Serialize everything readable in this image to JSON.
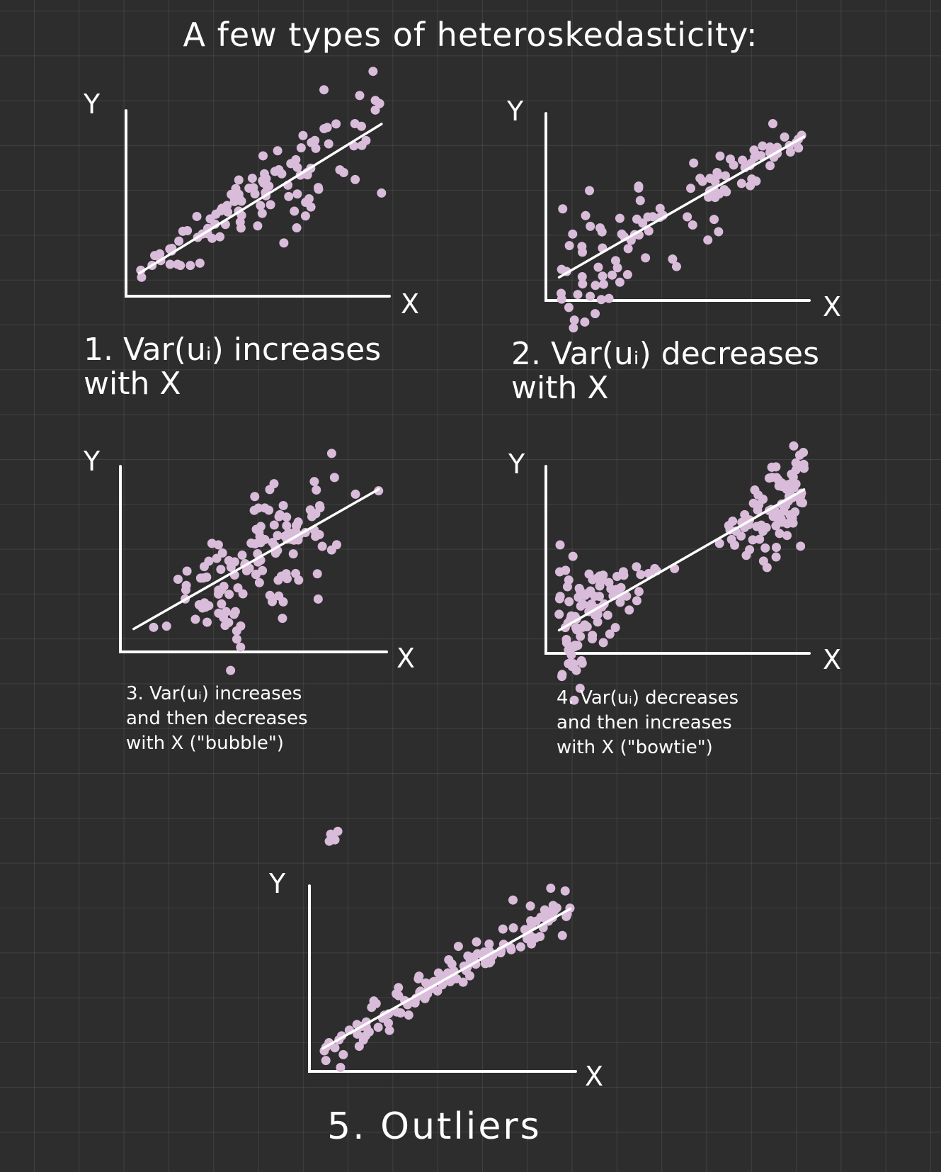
{
  "title": "A few types of heteroskedasticity:",
  "axis": {
    "x_label": "X",
    "y_label": "Y"
  },
  "colors": {
    "background": "#2d2d2d",
    "grid": "#4a4a4a",
    "ink": "#ffffff",
    "points": "#d9bcd9"
  },
  "chart_data": [
    {
      "type": "scatter",
      "pattern": "increasing-variance",
      "caption": "1. Var(uᵢ) increases\nwith X",
      "fit_line": {
        "x": [
          0.05,
          0.97
        ],
        "y": [
          0.12,
          0.9
        ]
      },
      "spread": {
        "left": 0.02,
        "right": 0.22,
        "shape": "increasing"
      },
      "n_points": 110
    },
    {
      "type": "scatter",
      "pattern": "decreasing-variance",
      "caption": "2. Var(uᵢ) decreases\nwith X",
      "fit_line": {
        "x": [
          0.05,
          0.98
        ],
        "y": [
          0.12,
          0.85
        ]
      },
      "spread": {
        "left": 0.22,
        "right": 0.02,
        "shape": "decreasing"
      },
      "n_points": 110
    },
    {
      "type": "scatter",
      "pattern": "bubble",
      "caption": "3. Var(uᵢ) increases\nand then decreases\nwith X (\"bubble\")",
      "fit_line": {
        "x": [
          0.05,
          0.97
        ],
        "y": [
          0.12,
          0.85
        ]
      },
      "spread": {
        "left": 0.02,
        "right": 0.02,
        "center": 0.2,
        "shape": "bubble"
      },
      "n_points": 130
    },
    {
      "type": "scatter",
      "pattern": "bowtie",
      "caption": "4. Var(uᵢ) decreases\nand then increases\nwith X (\"bowtie\")",
      "fit_line": {
        "x": [
          0.05,
          0.98
        ],
        "y": [
          0.12,
          0.85
        ]
      },
      "spread": {
        "left": 0.18,
        "right": 0.18,
        "center": 0.02,
        "shape": "bowtie"
      },
      "n_points": 190
    },
    {
      "type": "scatter",
      "pattern": "outliers",
      "caption": "5. Outliers",
      "fit_line": {
        "x": [
          0.05,
          0.98
        ],
        "y": [
          0.12,
          0.85
        ]
      },
      "spread": {
        "left": 0.06,
        "right": 0.06,
        "shape": "constant"
      },
      "outliers": [
        {
          "x": 0.08,
          "y": 1.24
        }
      ],
      "n_points": 130
    }
  ]
}
